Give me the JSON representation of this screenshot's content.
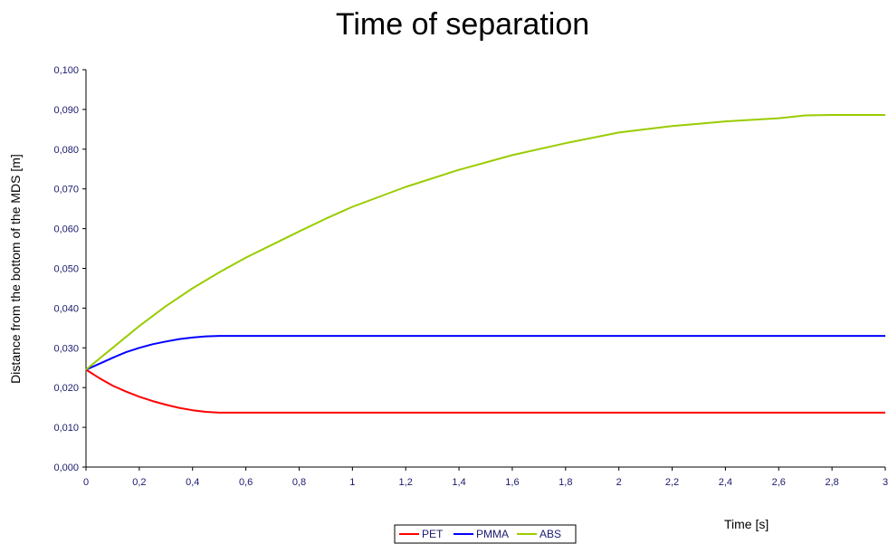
{
  "chart_data": {
    "type": "line",
    "title": "Time of separation",
    "xlabel": "Time  [s]",
    "ylabel": "Distance from the bottom of the MDS  [m]",
    "xlim": [
      0,
      3
    ],
    "ylim": [
      0,
      0.1
    ],
    "x_ticks": [
      0,
      0.2,
      0.4,
      0.6,
      0.8,
      1,
      1.2,
      1.4,
      1.6,
      1.8,
      2,
      2.2,
      2.4,
      2.6,
      2.8,
      3
    ],
    "x_tick_labels": [
      "0",
      "0,2",
      "0,4",
      "0,6",
      "0,8",
      "1",
      "1,2",
      "1,4",
      "1,6",
      "1,8",
      "2",
      "2,2",
      "2,4",
      "2,6",
      "2,8",
      "3"
    ],
    "y_ticks": [
      0,
      0.01,
      0.02,
      0.03,
      0.04,
      0.05,
      0.06,
      0.07,
      0.08,
      0.09,
      0.1
    ],
    "y_tick_labels": [
      "0,000",
      "0,010",
      "0,020",
      "0,030",
      "0,040",
      "0,050",
      "0,060",
      "0,070",
      "0,080",
      "0,090",
      "0,100"
    ],
    "grid": false,
    "legend_position": "bottom-center",
    "series": [
      {
        "name": "PET",
        "color": "#ff0000",
        "x": [
          0,
          0.05,
          0.1,
          0.15,
          0.2,
          0.25,
          0.3,
          0.35,
          0.4,
          0.45,
          0.5,
          1,
          1.5,
          2,
          2.5,
          3
        ],
        "y": [
          0.0245,
          0.0224,
          0.0205,
          0.019,
          0.0177,
          0.0166,
          0.0157,
          0.0149,
          0.0143,
          0.0139,
          0.0137,
          0.0137,
          0.0137,
          0.0137,
          0.0137,
          0.0137
        ]
      },
      {
        "name": "PMMA",
        "color": "#0000ff",
        "x": [
          0,
          0.05,
          0.1,
          0.15,
          0.2,
          0.25,
          0.3,
          0.35,
          0.4,
          0.45,
          0.5,
          1,
          1.5,
          2,
          2.5,
          3
        ],
        "y": [
          0.0245,
          0.026,
          0.0275,
          0.0289,
          0.03,
          0.0309,
          0.0316,
          0.0322,
          0.0326,
          0.0329,
          0.033,
          0.033,
          0.033,
          0.033,
          0.033,
          0.033
        ]
      },
      {
        "name": "ABS",
        "color": "#99cc00",
        "x": [
          0,
          0.1,
          0.2,
          0.3,
          0.4,
          0.5,
          0.6,
          0.7,
          0.8,
          0.9,
          1,
          1.2,
          1.4,
          1.6,
          1.8,
          2,
          2.2,
          2.4,
          2.6,
          2.7,
          2.8,
          3
        ],
        "y": [
          0.0245,
          0.03,
          0.0355,
          0.0405,
          0.045,
          0.049,
          0.0527,
          0.056,
          0.0593,
          0.0625,
          0.0655,
          0.0705,
          0.0748,
          0.0785,
          0.0815,
          0.0842,
          0.0858,
          0.087,
          0.0878,
          0.0885,
          0.0886,
          0.0886
        ]
      }
    ]
  }
}
